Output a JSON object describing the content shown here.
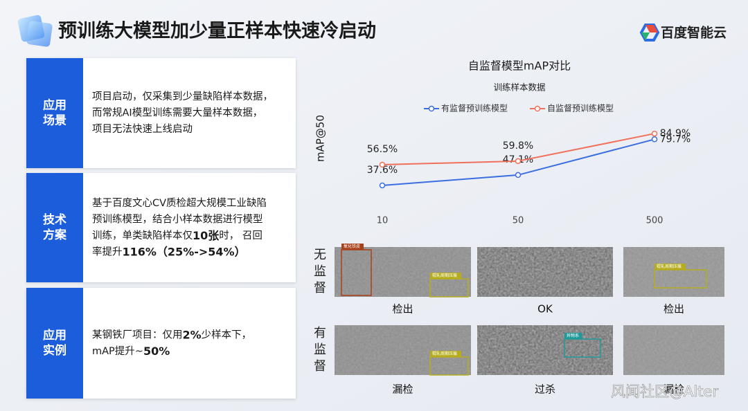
{
  "header": {
    "title": "预训练大模型加少量正样本快速冷启动",
    "logo": "百度智能云"
  },
  "rows": [
    {
      "label": [
        "应用",
        "场景"
      ],
      "lines": [
        [
          {
            "text": "项目启动，仅采集到少量缺陷样本数据，"
          }
        ],
        [
          {
            "text": "而常规AI模型训练需要大量样本数据，"
          }
        ],
        [
          {
            "text": "项目无法快速上线启动"
          }
        ]
      ]
    },
    {
      "label": [
        "技术",
        "方案"
      ],
      "lines": [
        [
          {
            "text": "基于百度文心CV质检超大规模工业缺陷"
          }
        ],
        [
          {
            "text": "预训练模型，结合小样本数据进行模型"
          }
        ],
        [
          {
            "text": "训练，单类缺陷样本仅"
          },
          {
            "text": "10张",
            "bold": true
          },
          {
            "text": "时， 召回"
          }
        ],
        [
          {
            "text": "率提升"
          },
          {
            "text": "116%（25%->54%）",
            "bold": true
          }
        ]
      ]
    },
    {
      "label": [
        "应用",
        "实例"
      ],
      "lines": [
        [
          {
            "text": "某钢铁厂项目：仅用"
          },
          {
            "text": "2%",
            "bold": true
          },
          {
            "text": "少样本下，"
          }
        ],
        [
          {
            "text": "mAP提升~"
          },
          {
            "text": "50%",
            "bold": true
          }
        ]
      ]
    }
  ],
  "chart_data": {
    "type": "line",
    "title": "自监督模型mAP对比",
    "subtitle": "训练样本数据",
    "y_label": "mAP@50",
    "categories": [
      "10",
      "50",
      "500"
    ],
    "series": [
      {
        "name": "有监督预训练模型",
        "color": "#3a6ee0",
        "values": [
          37.6,
          47.1,
          79.7
        ],
        "value_labels": [
          "37.6%",
          "47.1%",
          "79.7%"
        ]
      },
      {
        "name": "自监督预训练模型",
        "color": "#f0705a",
        "values": [
          56.5,
          59.8,
          84.9
        ],
        "value_labels": [
          "56.5%",
          "59.8%",
          "84.9%"
        ]
      }
    ],
    "ylim": [
      30,
      90
    ],
    "grid": false
  },
  "samples": {
    "rows": [
      {
        "label": [
          "无",
          "监",
          "督"
        ],
        "items": [
          {
            "caption": "检出",
            "tags": [
              {
                "text": "氧化铁皮",
                "color": "#a8401c"
              },
              {
                "text": "辊轧周期压痕",
                "color": "#b5ad1e"
              }
            ]
          },
          {
            "caption": "OK"
          },
          {
            "caption": "检出",
            "tags": [
              {
                "text": "辊轧周期压痕",
                "color": "#b5ad1e"
              }
            ]
          }
        ]
      },
      {
        "label": [
          "有",
          "监",
          "督"
        ],
        "items": [
          {
            "caption": "漏检",
            "tags": [
              {
                "text": "辊轧周期压痕",
                "color": "#b5ad1e"
              }
            ]
          },
          {
            "caption": "过杀",
            "tags": [
              {
                "text": "异物系",
                "color": "#1f9a9a"
              }
            ]
          },
          {
            "caption": "漏检"
          }
        ]
      }
    ]
  },
  "watermark": "风闻社区@Alter"
}
